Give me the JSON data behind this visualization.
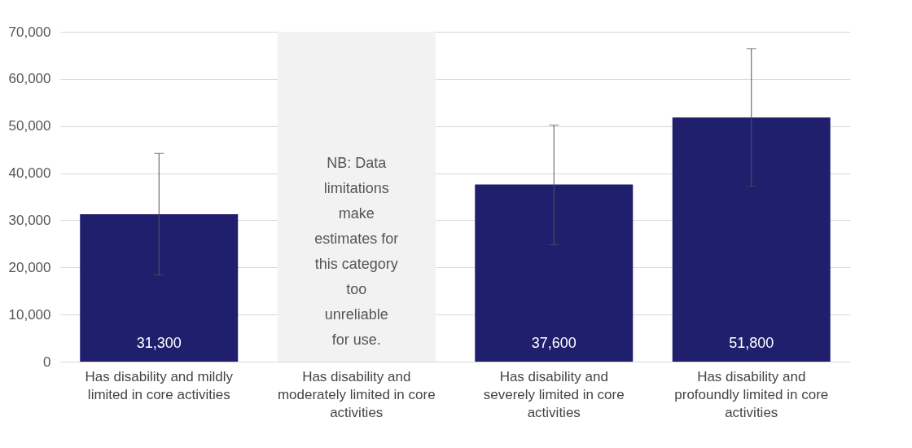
{
  "chart_data": {
    "type": "bar",
    "categories": [
      "Has disability and mildly limited in core activities",
      "Has disability and moderately limited in core activities",
      "Has disability and severely limited in core activities",
      "Has disability and profoundly limited in core activities"
    ],
    "values": [
      31300,
      null,
      37600,
      51800
    ],
    "errors": [
      [
        18400,
        44200
      ],
      null,
      [
        24800,
        50200
      ],
      [
        37200,
        66400
      ]
    ],
    "color": "#1f1f6e",
    "value_labels": [
      "31,300",
      null,
      "37,600",
      "51,800"
    ],
    "ylim": [
      0,
      70000
    ],
    "yticks": [
      {
        "value": 0,
        "label": "0"
      },
      {
        "value": 10000,
        "label": "10,000"
      },
      {
        "value": 20000,
        "label": "20,000"
      },
      {
        "value": 30000,
        "label": "30,000"
      },
      {
        "value": 40000,
        "label": "40,000"
      },
      {
        "value": 50000,
        "label": "50,000"
      },
      {
        "value": 60000,
        "label": "60,000"
      },
      {
        "value": 70000,
        "label": "70,000"
      }
    ],
    "grid": "y",
    "bands": [
      {
        "axis": "x",
        "from": "Has disability and moderately limited in core activities",
        "to": "Has disability and moderately limited in core activities",
        "label": "NB: Data limitations make estimates for this category too unreliable for use.",
        "color": "#f2f2f2"
      }
    ]
  }
}
